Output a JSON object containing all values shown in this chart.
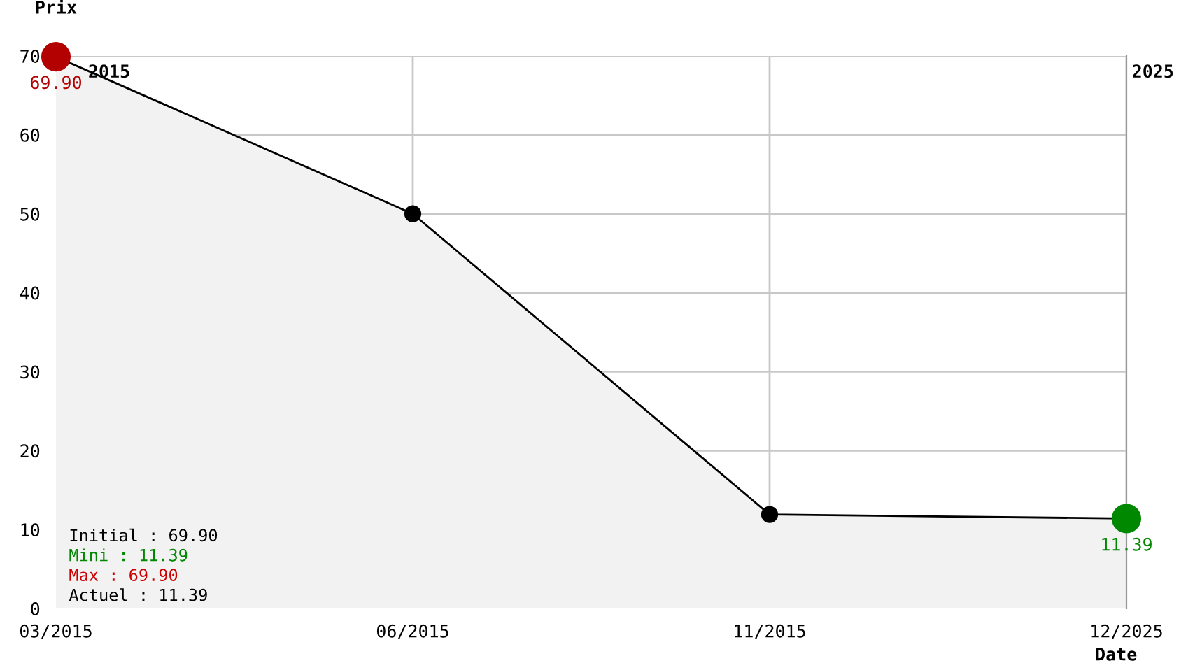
{
  "chart_data": {
    "type": "area",
    "xlabel": "Date",
    "ylabel": "Prix",
    "categories": [
      "03/2015",
      "06/2015",
      "11/2015",
      "12/2025"
    ],
    "series": [
      {
        "color": "#000000",
        "values": [
          69.9,
          50,
          11.9,
          11.39
        ],
        "colors": [
          "#b30000",
          "#000000",
          "#000000",
          "#008800"
        ],
        "value_labels": [
          "69.90",
          null,
          null,
          "11.39"
        ]
      }
    ],
    "ylim": [
      0,
      70
    ],
    "yticks": [
      0,
      10,
      20,
      30,
      40,
      50,
      60,
      70
    ],
    "grid": true,
    "marker": "circle",
    "line_style": "solid",
    "annotations": [
      "2015",
      "2025",
      "Initial : 69.90",
      "Mini : 11.39",
      "Max : 69.90",
      "Actuel : 11.39"
    ]
  }
}
